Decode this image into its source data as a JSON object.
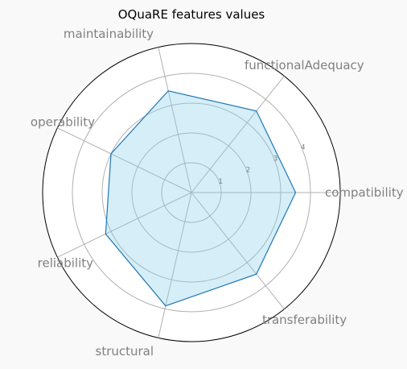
{
  "chart_data": {
    "type": "radar",
    "title": "OQuaRE features values",
    "categories": [
      "compatibility",
      "functionalAdequacy",
      "maintainability",
      "operability",
      "reliability",
      "structural",
      "transferability"
    ],
    "series": [
      {
        "values": [
          3.5,
          3.5,
          3.5,
          3.0,
          3.2,
          3.9,
          3.5
        ]
      }
    ],
    "rlim": [
      0,
      5
    ],
    "rticks": [
      1,
      2,
      3,
      4
    ],
    "grid": true,
    "colors": {
      "line": "#1f77b4",
      "fill": "#87ceeb",
      "grid": "#b0b0b0",
      "labels": "#808080",
      "background": "#f9f9f9"
    }
  }
}
